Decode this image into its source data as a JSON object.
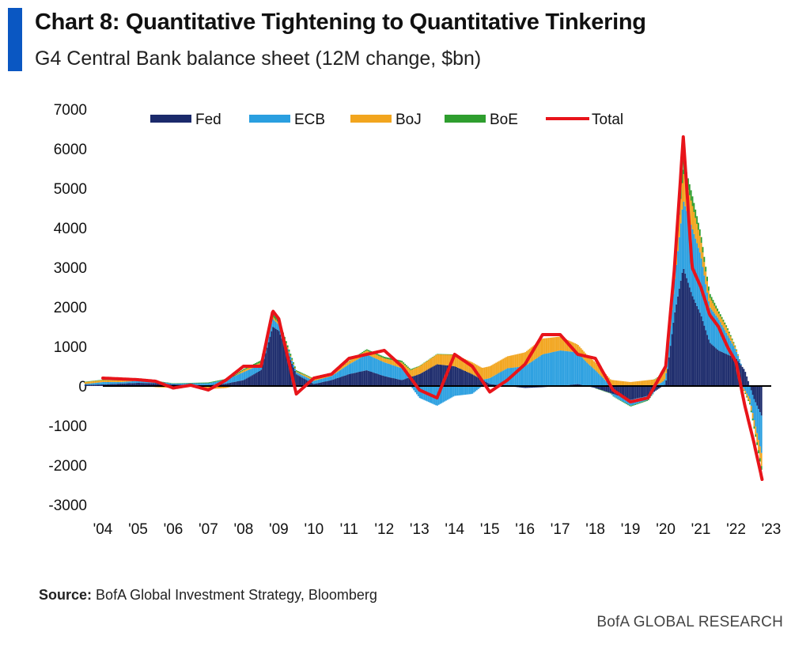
{
  "header": {
    "title": "Chart 8: Quantitative Tightening to Quantitative Tinkering",
    "subtitle": "G4 Central Bank balance sheet (12M change, $bn)"
  },
  "footer": {
    "source_label": "Source:",
    "source_text": "BofA Global Investment Strategy, Bloomberg",
    "brand": "BofA GLOBAL RESEARCH"
  },
  "colors": {
    "accent": "#0a57c2",
    "Fed": "#1b2a6b",
    "ECB": "#2a9fe0",
    "BoJ": "#f2a51e",
    "BoE": "#2e9e2e",
    "Total": "#e8141a"
  },
  "chart_data": {
    "type": "bar",
    "stacked": true,
    "title": "Chart 8: Quantitative Tightening to Quantitative Tinkering",
    "subtitle": "G4 Central Bank balance sheet (12M change, $bn)",
    "ylim": [
      -3000,
      7000
    ],
    "yticks": [
      7000,
      6000,
      5000,
      4000,
      3000,
      2000,
      1000,
      0,
      -1000,
      -2000,
      -3000
    ],
    "xlim": [
      2003.5,
      2023.8
    ],
    "xticks": [
      {
        "x": 2004,
        "label": "'04"
      },
      {
        "x": 2005,
        "label": "'05"
      },
      {
        "x": 2006,
        "label": "'06"
      },
      {
        "x": 2007,
        "label": "'07"
      },
      {
        "x": 2008,
        "label": "'08"
      },
      {
        "x": 2009,
        "label": "'09"
      },
      {
        "x": 2010,
        "label": "'10"
      },
      {
        "x": 2011,
        "label": "'11"
      },
      {
        "x": 2012,
        "label": "'12"
      },
      {
        "x": 2013,
        "label": "'13"
      },
      {
        "x": 2014,
        "label": "'14"
      },
      {
        "x": 2015,
        "label": "'15"
      },
      {
        "x": 2016,
        "label": "'16"
      },
      {
        "x": 2017,
        "label": "'17"
      },
      {
        "x": 2018,
        "label": "'18"
      },
      {
        "x": 2019,
        "label": "'19"
      },
      {
        "x": 2020,
        "label": "'20"
      },
      {
        "x": 2021,
        "label": "'21"
      },
      {
        "x": 2022,
        "label": "'22"
      },
      {
        "x": 2023,
        "label": "'23"
      }
    ],
    "legend_position": "top",
    "legend": [
      {
        "name": "Fed",
        "kind": "bar"
      },
      {
        "name": "ECB",
        "kind": "bar"
      },
      {
        "name": "BoJ",
        "kind": "bar"
      },
      {
        "name": "BoE",
        "kind": "bar"
      },
      {
        "name": "Total",
        "kind": "line"
      }
    ],
    "x": [
      2003.5,
      2004.0,
      2004.5,
      2005.0,
      2005.5,
      2006.0,
      2006.5,
      2007.0,
      2007.5,
      2008.0,
      2008.5,
      2008.83,
      2009.0,
      2009.5,
      2010.0,
      2010.5,
      2011.0,
      2011.5,
      2012.0,
      2012.5,
      2013.0,
      2013.5,
      2014.0,
      2014.5,
      2015.0,
      2015.5,
      2016.0,
      2016.5,
      2017.0,
      2017.5,
      2018.0,
      2018.5,
      2019.0,
      2019.5,
      2020.0,
      2020.25,
      2020.5,
      2020.75,
      2021.0,
      2021.25,
      2021.5,
      2021.75,
      2022.0,
      2022.25,
      2022.5,
      2022.75
    ],
    "series": [
      {
        "name": "Fed",
        "values": [
          30,
          40,
          60,
          80,
          70,
          40,
          30,
          20,
          60,
          150,
          400,
          1500,
          1400,
          300,
          50,
          150,
          300,
          400,
          250,
          150,
          300,
          550,
          500,
          300,
          50,
          0,
          -50,
          -30,
          0,
          50,
          -50,
          -200,
          -350,
          -250,
          50,
          1800,
          3000,
          2300,
          1800,
          1100,
          900,
          800,
          700,
          400,
          -300,
          -800
        ]
      },
      {
        "name": "ECB",
        "values": [
          20,
          60,
          40,
          50,
          50,
          20,
          40,
          50,
          100,
          200,
          150,
          200,
          150,
          50,
          80,
          100,
          250,
          400,
          350,
          300,
          -300,
          -500,
          -250,
          -200,
          150,
          450,
          500,
          800,
          900,
          800,
          400,
          -50,
          -150,
          -100,
          150,
          800,
          1700,
          1700,
          1500,
          900,
          800,
          500,
          200,
          -100,
          -500,
          -1000
        ]
      },
      {
        "name": "BoJ",
        "values": [
          50,
          50,
          40,
          30,
          -30,
          -50,
          -20,
          -80,
          -50,
          50,
          50,
          50,
          50,
          20,
          50,
          50,
          80,
          100,
          100,
          150,
          200,
          250,
          300,
          300,
          300,
          300,
          350,
          400,
          350,
          200,
          200,
          150,
          100,
          150,
          200,
          400,
          700,
          600,
          400,
          250,
          150,
          150,
          50,
          -50,
          -150,
          -350
        ]
      },
      {
        "name": "BoE",
        "values": [
          10,
          10,
          10,
          10,
          10,
          10,
          10,
          20,
          20,
          30,
          50,
          100,
          80,
          30,
          10,
          10,
          10,
          30,
          40,
          40,
          10,
          10,
          0,
          0,
          0,
          0,
          0,
          0,
          0,
          0,
          0,
          -10,
          -20,
          -20,
          40,
          250,
          350,
          250,
          150,
          100,
          60,
          40,
          20,
          -20,
          -50,
          -100
        ]
      },
      {
        "name": "Total",
        "values": [
          120,
          200,
          180,
          160,
          120,
          -50,
          20,
          -100,
          150,
          500,
          500,
          1900,
          1700,
          -200,
          200,
          300,
          700,
          800,
          900,
          500,
          -100,
          -300,
          800,
          500,
          -150,
          150,
          550,
          1300,
          1300,
          800,
          700,
          -100,
          -400,
          -300,
          500,
          3000,
          6300,
          3000,
          2500,
          1800,
          1500,
          1000,
          600,
          -500,
          -1400,
          -2400
        ]
      }
    ]
  }
}
